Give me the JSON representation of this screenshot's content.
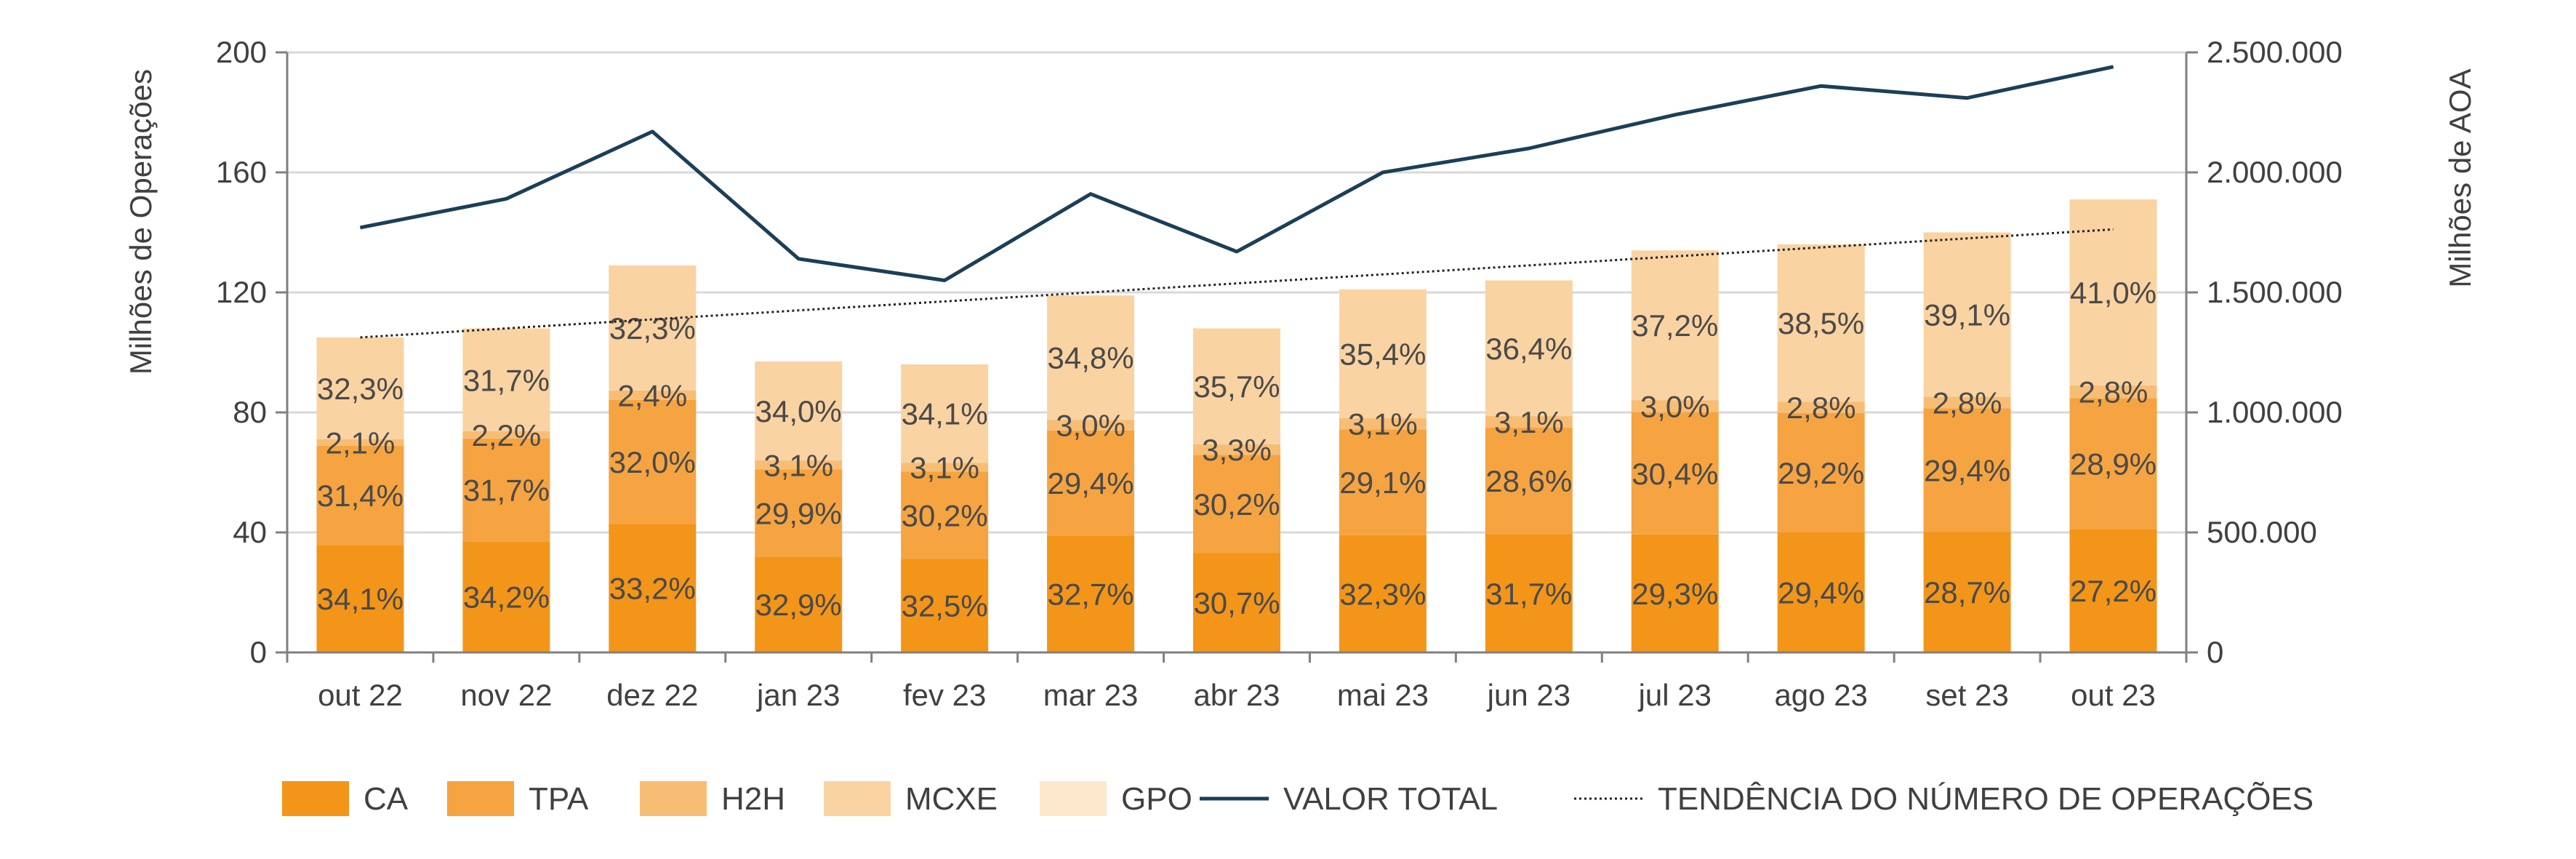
{
  "chart_data": {
    "type": "bar",
    "stacked": true,
    "categories": [
      "out 22",
      "nov 22",
      "dez 22",
      "jan 23",
      "fev 23",
      "mar 23",
      "abr 23",
      "mai 23",
      "jun 23",
      "jul 23",
      "ago 23",
      "set 23",
      "out 23"
    ],
    "totals": [
      105,
      108,
      129,
      97,
      96,
      119,
      108,
      121,
      124,
      134,
      136,
      140,
      151
    ],
    "series": [
      {
        "name": "CA",
        "color": "#F39519",
        "labels": [
          "34,1%",
          "34,2%",
          "33,2%",
          "32,9%",
          "32,5%",
          "32,7%",
          "30,7%",
          "32,3%",
          "31,7%",
          "29,3%",
          "29,4%",
          "28,7%",
          "27,2%"
        ]
      },
      {
        "name": "TPA",
        "color": "#F5A441",
        "labels": [
          "31,4%",
          "31,7%",
          "32,0%",
          "29,9%",
          "30,2%",
          "29,4%",
          "30,2%",
          "29,1%",
          "28,6%",
          "30,4%",
          "29,2%",
          "29,4%",
          "28,9%"
        ]
      },
      {
        "name": "H2H",
        "color": "#F8BD74",
        "labels": [
          "2,1%",
          "2,2%",
          "2,4%",
          "3,1%",
          "3,1%",
          "3,0%",
          "3,3%",
          "3,1%",
          "3,1%",
          "3,0%",
          "2,8%",
          "2,8%",
          "2,8%"
        ]
      },
      {
        "name": "MCXE",
        "color": "#FAD3A2",
        "labels": [
          "32,3%",
          "31,7%",
          "32,3%",
          "34,0%",
          "34,1%",
          "34,8%",
          "35,7%",
          "35,4%",
          "36,4%",
          "37,2%",
          "38,5%",
          "39,1%",
          "41,0%"
        ]
      },
      {
        "name": "GPO",
        "color": "#FDE8CC",
        "labels": []
      }
    ],
    "line": {
      "name": "VALOR TOTAL",
      "color": "#1B3F58",
      "values": [
        1770000,
        1890000,
        2170000,
        1640000,
        1550000,
        1910000,
        1670000,
        2000000,
        2100000,
        2240000,
        2360000,
        2310000,
        2440000
      ]
    },
    "trend": {
      "name": "TENDÊNCIA DO NÚMERO DE OPERAÇÕES",
      "start": 105,
      "end": 141
    },
    "ylabel": "Milhões de Operações",
    "y2label": "Milhões de AOA",
    "ylim": [
      0,
      200
    ],
    "y2lim": [
      0,
      2500000
    ],
    "yticks": [
      "0",
      "40",
      "80",
      "120",
      "160",
      "200"
    ],
    "y2ticks": [
      "0",
      "500.000",
      "1.000.000",
      "1.500.000",
      "2.000.000",
      "2.500.000"
    ],
    "grid": true,
    "legend_position": "bottom"
  }
}
